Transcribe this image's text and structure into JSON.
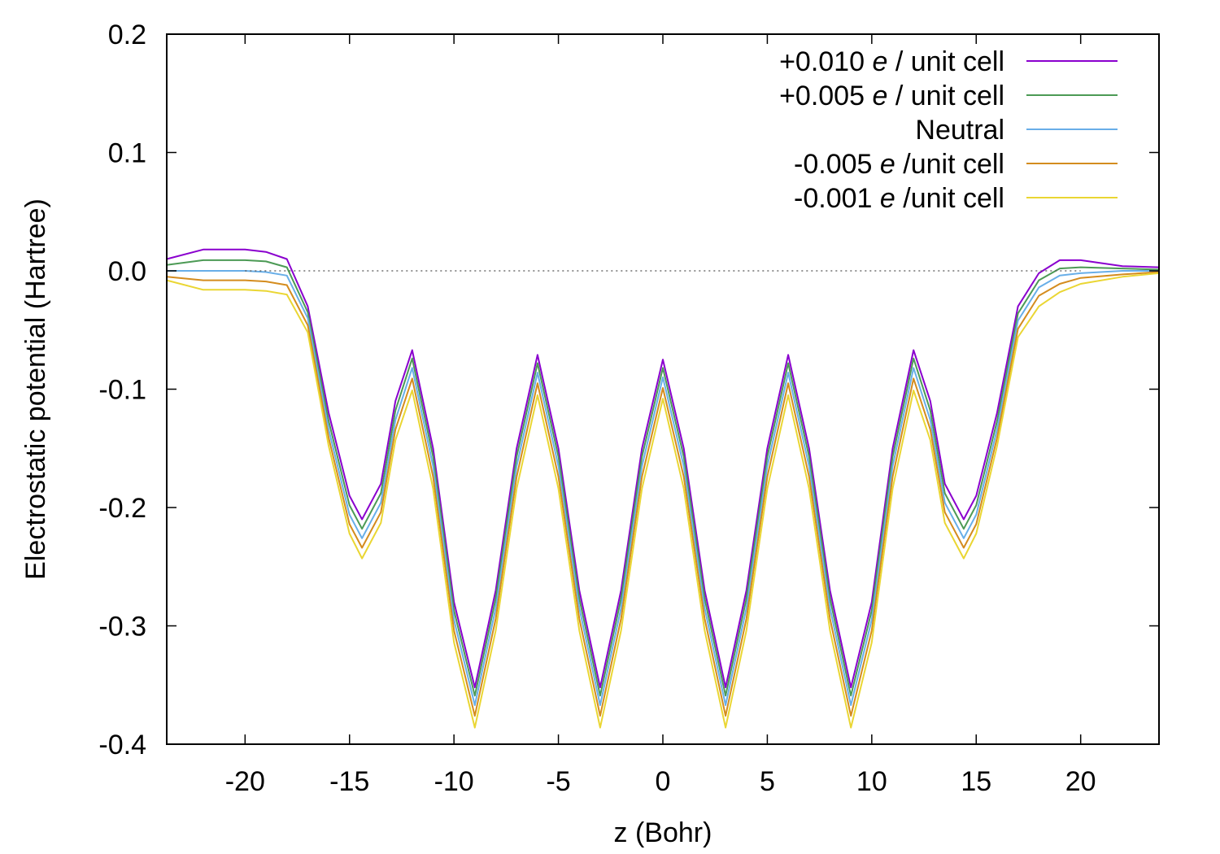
{
  "chart_data": {
    "type": "line",
    "title": "",
    "xlabel": "z (Bohr)",
    "ylabel": "Electrostatic potential (Hartree)",
    "xlim": [
      -23.75,
      23.75
    ],
    "ylim": [
      -0.4,
      0.2
    ],
    "x_ticks": [
      -20,
      -15,
      -10,
      -5,
      0,
      5,
      10,
      15,
      20
    ],
    "x_tick_labels": [
      "-20",
      "-15",
      "-10",
      "-5",
      "0",
      "5",
      "10",
      "15",
      "20"
    ],
    "y_ticks": [
      0.2,
      0.1,
      0.0,
      -0.1,
      -0.2,
      -0.3,
      -0.4
    ],
    "y_tick_labels": [
      "0.2",
      "0.1",
      "0.0",
      "-0.1",
      "-0.2",
      "-0.3",
      "-0.4"
    ],
    "grid": false,
    "zero_line": "dotted",
    "legend_position": "top-right",
    "x": [
      -23.75,
      -22,
      -20,
      -19,
      -18,
      -17,
      -16,
      -15,
      -14.4,
      -13.5,
      -12.8,
      -12,
      -11,
      -10,
      -9,
      -8,
      -7,
      -6,
      -5,
      -4,
      -3,
      -2,
      -1,
      0,
      1,
      2,
      3,
      4,
      5,
      6,
      7,
      8,
      9,
      10,
      11,
      12,
      12.8,
      13.5,
      14.4,
      15,
      16,
      17,
      18,
      19,
      20,
      22,
      23.75
    ],
    "series": [
      {
        "name": "+0.010 e / unit cell",
        "label_prefix": "+0.010 ",
        "label_italic": "e",
        "label_suffix": " / unit cell",
        "color": "#8A00CE",
        "values": [
          0.01,
          0.018,
          0.018,
          0.016,
          0.01,
          -0.03,
          -0.12,
          -0.19,
          -0.21,
          -0.18,
          -0.11,
          -0.067,
          -0.15,
          -0.28,
          -0.352,
          -0.27,
          -0.15,
          -0.071,
          -0.15,
          -0.27,
          -0.352,
          -0.27,
          -0.15,
          -0.075,
          -0.15,
          -0.27,
          -0.352,
          -0.27,
          -0.15,
          -0.071,
          -0.15,
          -0.27,
          -0.352,
          -0.28,
          -0.15,
          -0.067,
          -0.11,
          -0.18,
          -0.21,
          -0.19,
          -0.12,
          -0.03,
          -0.002,
          0.009,
          0.009,
          0.004,
          0.003
        ]
      },
      {
        "name": "+0.005 e / unit cell",
        "label_prefix": "+0.005 ",
        "label_italic": "e",
        "label_suffix": " / unit cell",
        "color": "#4C9A55",
        "values": [
          0.005,
          0.009,
          0.009,
          0.008,
          0.003,
          -0.035,
          -0.127,
          -0.198,
          -0.218,
          -0.188,
          -0.118,
          -0.074,
          -0.157,
          -0.287,
          -0.359,
          -0.277,
          -0.157,
          -0.078,
          -0.157,
          -0.277,
          -0.359,
          -0.277,
          -0.157,
          -0.082,
          -0.157,
          -0.277,
          -0.359,
          -0.277,
          -0.157,
          -0.078,
          -0.157,
          -0.277,
          -0.359,
          -0.287,
          -0.157,
          -0.074,
          -0.118,
          -0.188,
          -0.218,
          -0.198,
          -0.127,
          -0.036,
          -0.008,
          0.002,
          0.003,
          0.002,
          0.001
        ]
      },
      {
        "name": "Neutral",
        "label_prefix": "Neutral",
        "label_italic": "",
        "label_suffix": "",
        "color": "#68AEE8",
        "values": [
          0.0,
          0.0,
          0.0,
          -0.001,
          -0.004,
          -0.04,
          -0.134,
          -0.206,
          -0.226,
          -0.196,
          -0.126,
          -0.082,
          -0.165,
          -0.295,
          -0.367,
          -0.285,
          -0.165,
          -0.086,
          -0.165,
          -0.285,
          -0.367,
          -0.285,
          -0.165,
          -0.09,
          -0.165,
          -0.285,
          -0.367,
          -0.285,
          -0.165,
          -0.086,
          -0.165,
          -0.285,
          -0.367,
          -0.295,
          -0.165,
          -0.082,
          -0.126,
          -0.196,
          -0.226,
          -0.206,
          -0.134,
          -0.042,
          -0.014,
          -0.004,
          -0.002,
          0.0,
          0.0
        ]
      },
      {
        "name": "-0.005 e /unit cell",
        "label_prefix": "-0.005 ",
        "label_italic": "e",
        "label_suffix": " /unit cell",
        "color": "#D48C1E",
        "values": [
          -0.005,
          -0.008,
          -0.008,
          -0.009,
          -0.012,
          -0.046,
          -0.141,
          -0.214,
          -0.234,
          -0.204,
          -0.134,
          -0.091,
          -0.174,
          -0.304,
          -0.376,
          -0.294,
          -0.174,
          -0.095,
          -0.174,
          -0.294,
          -0.376,
          -0.294,
          -0.174,
          -0.099,
          -0.174,
          -0.294,
          -0.376,
          -0.294,
          -0.174,
          -0.095,
          -0.174,
          -0.294,
          -0.376,
          -0.304,
          -0.174,
          -0.091,
          -0.134,
          -0.204,
          -0.234,
          -0.214,
          -0.141,
          -0.049,
          -0.021,
          -0.011,
          -0.006,
          -0.003,
          -0.001
        ]
      },
      {
        "name": "-0.001 e /unit cell",
        "label_prefix": "-0.001 ",
        "label_italic": "e",
        "label_suffix": " /unit cell",
        "color": "#EAD633",
        "values": [
          -0.008,
          -0.016,
          -0.016,
          -0.017,
          -0.02,
          -0.052,
          -0.148,
          -0.222,
          -0.243,
          -0.213,
          -0.143,
          -0.101,
          -0.184,
          -0.314,
          -0.386,
          -0.304,
          -0.184,
          -0.105,
          -0.184,
          -0.304,
          -0.386,
          -0.304,
          -0.184,
          -0.108,
          -0.184,
          -0.304,
          -0.386,
          -0.304,
          -0.184,
          -0.105,
          -0.184,
          -0.304,
          -0.386,
          -0.314,
          -0.184,
          -0.101,
          -0.143,
          -0.213,
          -0.243,
          -0.222,
          -0.148,
          -0.056,
          -0.03,
          -0.018,
          -0.011,
          -0.005,
          -0.002
        ]
      }
    ]
  }
}
